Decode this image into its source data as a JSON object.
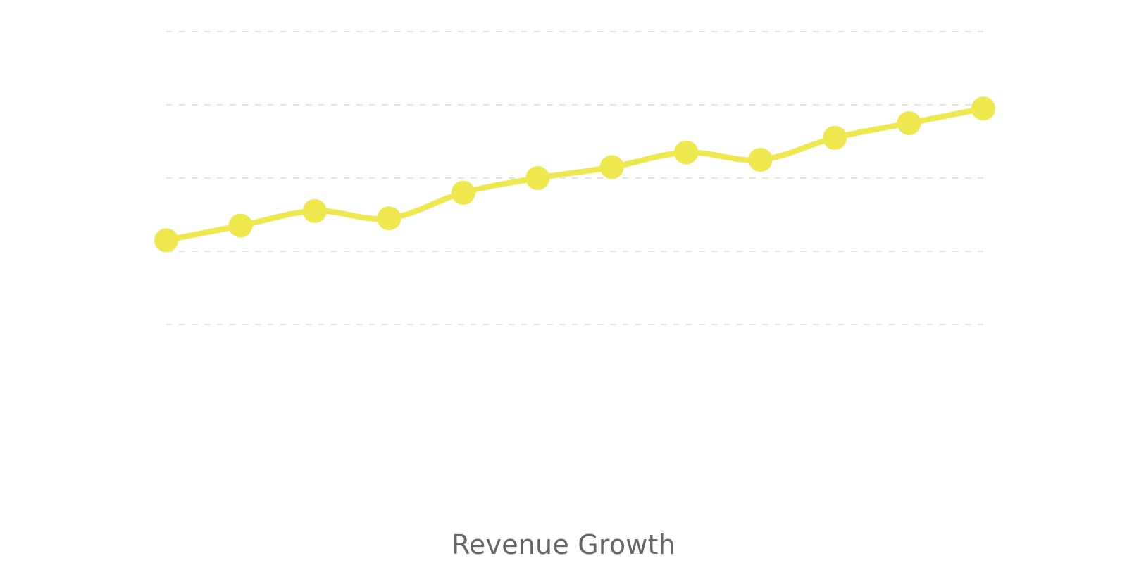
{
  "chart_data": {
    "type": "line",
    "title": "Revenue Growth",
    "xlabel": "",
    "ylabel": "",
    "x": [
      1,
      2,
      3,
      4,
      5,
      6,
      7,
      8,
      9,
      10,
      11,
      12
    ],
    "series": [
      {
        "values": [
          43,
          47,
          51,
          49,
          56,
          60,
          63,
          67,
          65,
          71,
          75,
          79
        ]
      }
    ],
    "ylim": [
      0,
      100
    ],
    "grid": true,
    "grid_values": [
      20,
      40,
      60,
      80,
      100
    ],
    "line_smooth": true,
    "markers": true
  },
  "colors": {
    "line": "#EEE84E",
    "marker": "#EEE84E",
    "grid": "#E3E3E3",
    "title": "#666666",
    "background": "#FFFFFF"
  }
}
